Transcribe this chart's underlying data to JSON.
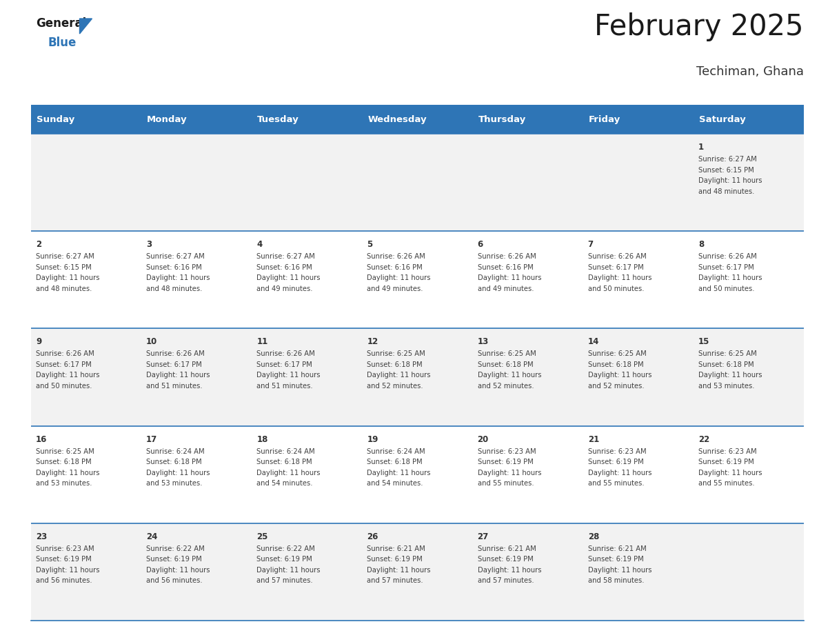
{
  "title": "February 2025",
  "subtitle": "Techiman, Ghana",
  "header_color": "#2E75B6",
  "header_text_color": "#FFFFFF",
  "border_color": "#2E75B6",
  "day_headers": [
    "Sunday",
    "Monday",
    "Tuesday",
    "Wednesday",
    "Thursday",
    "Friday",
    "Saturday"
  ],
  "calendar_data": [
    [
      null,
      null,
      null,
      null,
      null,
      null,
      {
        "day": 1,
        "sunrise": "6:27 AM",
        "sunset": "6:15 PM",
        "daylight": "11 hours and 48 minutes."
      }
    ],
    [
      {
        "day": 2,
        "sunrise": "6:27 AM",
        "sunset": "6:15 PM",
        "daylight": "11 hours and 48 minutes."
      },
      {
        "day": 3,
        "sunrise": "6:27 AM",
        "sunset": "6:16 PM",
        "daylight": "11 hours and 48 minutes."
      },
      {
        "day": 4,
        "sunrise": "6:27 AM",
        "sunset": "6:16 PM",
        "daylight": "11 hours and 49 minutes."
      },
      {
        "day": 5,
        "sunrise": "6:26 AM",
        "sunset": "6:16 PM",
        "daylight": "11 hours and 49 minutes."
      },
      {
        "day": 6,
        "sunrise": "6:26 AM",
        "sunset": "6:16 PM",
        "daylight": "11 hours and 49 minutes."
      },
      {
        "day": 7,
        "sunrise": "6:26 AM",
        "sunset": "6:17 PM",
        "daylight": "11 hours and 50 minutes."
      },
      {
        "day": 8,
        "sunrise": "6:26 AM",
        "sunset": "6:17 PM",
        "daylight": "11 hours and 50 minutes."
      }
    ],
    [
      {
        "day": 9,
        "sunrise": "6:26 AM",
        "sunset": "6:17 PM",
        "daylight": "11 hours and 50 minutes."
      },
      {
        "day": 10,
        "sunrise": "6:26 AM",
        "sunset": "6:17 PM",
        "daylight": "11 hours and 51 minutes."
      },
      {
        "day": 11,
        "sunrise": "6:26 AM",
        "sunset": "6:17 PM",
        "daylight": "11 hours and 51 minutes."
      },
      {
        "day": 12,
        "sunrise": "6:25 AM",
        "sunset": "6:18 PM",
        "daylight": "11 hours and 52 minutes."
      },
      {
        "day": 13,
        "sunrise": "6:25 AM",
        "sunset": "6:18 PM",
        "daylight": "11 hours and 52 minutes."
      },
      {
        "day": 14,
        "sunrise": "6:25 AM",
        "sunset": "6:18 PM",
        "daylight": "11 hours and 52 minutes."
      },
      {
        "day": 15,
        "sunrise": "6:25 AM",
        "sunset": "6:18 PM",
        "daylight": "11 hours and 53 minutes."
      }
    ],
    [
      {
        "day": 16,
        "sunrise": "6:25 AM",
        "sunset": "6:18 PM",
        "daylight": "11 hours and 53 minutes."
      },
      {
        "day": 17,
        "sunrise": "6:24 AM",
        "sunset": "6:18 PM",
        "daylight": "11 hours and 53 minutes."
      },
      {
        "day": 18,
        "sunrise": "6:24 AM",
        "sunset": "6:18 PM",
        "daylight": "11 hours and 54 minutes."
      },
      {
        "day": 19,
        "sunrise": "6:24 AM",
        "sunset": "6:18 PM",
        "daylight": "11 hours and 54 minutes."
      },
      {
        "day": 20,
        "sunrise": "6:23 AM",
        "sunset": "6:19 PM",
        "daylight": "11 hours and 55 minutes."
      },
      {
        "day": 21,
        "sunrise": "6:23 AM",
        "sunset": "6:19 PM",
        "daylight": "11 hours and 55 minutes."
      },
      {
        "day": 22,
        "sunrise": "6:23 AM",
        "sunset": "6:19 PM",
        "daylight": "11 hours and 55 minutes."
      }
    ],
    [
      {
        "day": 23,
        "sunrise": "6:23 AM",
        "sunset": "6:19 PM",
        "daylight": "11 hours and 56 minutes."
      },
      {
        "day": 24,
        "sunrise": "6:22 AM",
        "sunset": "6:19 PM",
        "daylight": "11 hours and 56 minutes."
      },
      {
        "day": 25,
        "sunrise": "6:22 AM",
        "sunset": "6:19 PM",
        "daylight": "11 hours and 57 minutes."
      },
      {
        "day": 26,
        "sunrise": "6:21 AM",
        "sunset": "6:19 PM",
        "daylight": "11 hours and 57 minutes."
      },
      {
        "day": 27,
        "sunrise": "6:21 AM",
        "sunset": "6:19 PM",
        "daylight": "11 hours and 57 minutes."
      },
      {
        "day": 28,
        "sunrise": "6:21 AM",
        "sunset": "6:19 PM",
        "daylight": "11 hours and 58 minutes."
      },
      null
    ]
  ],
  "figure_width": 11.88,
  "figure_height": 9.18,
  "n_cols": 7,
  "n_rows": 5
}
